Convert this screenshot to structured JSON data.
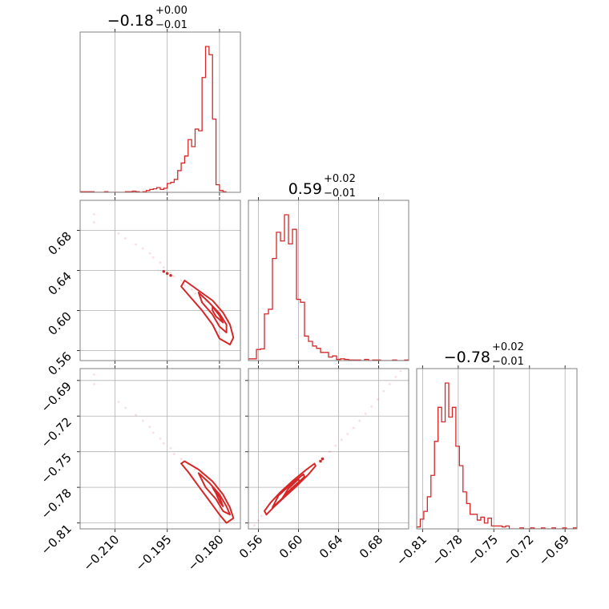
{
  "colors": {
    "series": "#d62728",
    "grid": "#b0b0b0",
    "frame": "#808080"
  },
  "chart_data": {
    "type": "corner",
    "parameters": [
      {
        "title": {
          "value": "−0.18",
          "upper": "+0.00",
          "lower": "−0.01"
        },
        "range": [
          -0.22,
          -0.174
        ],
        "ticks": [
          -0.21,
          -0.195,
          -0.18
        ],
        "tick_labels": [
          "−0.210",
          "−0.195",
          "−0.180"
        ],
        "histogram": {
          "bin_edges_start": -0.22,
          "bin_width": 0.001,
          "counts": [
            1,
            1,
            1,
            1,
            0,
            0,
            0,
            1,
            0,
            0,
            0,
            0,
            0,
            1,
            1,
            2,
            1,
            0,
            1,
            3,
            5,
            6,
            8,
            5,
            7,
            15,
            17,
            22,
            37,
            50,
            62,
            90,
            78,
            108,
            105,
            196,
            249,
            235,
            125,
            13,
            3,
            1
          ]
        }
      },
      {
        "title": {
          "value": "0.59",
          "upper": "+0.02",
          "lower": "−0.01"
        },
        "range": [
          0.55,
          0.71
        ],
        "ticks": [
          0.56,
          0.6,
          0.64,
          0.68
        ],
        "tick_labels": [
          "0.56",
          "0.60",
          "0.64",
          "0.68"
        ],
        "histogram": {
          "bin_edges_start": 0.55,
          "bin_width": 0.004,
          "counts": [
            3,
            3,
            19,
            20,
            80,
            88,
            175,
            220,
            205,
            250,
            200,
            225,
            105,
            100,
            42,
            33,
            25,
            21,
            14,
            14,
            6,
            8,
            2,
            3,
            2,
            1,
            1,
            1,
            0,
            2,
            0,
            1,
            1,
            0,
            0,
            0,
            1,
            0,
            0,
            1
          ]
        }
      },
      {
        "title": {
          "value": "−0.78",
          "upper": "+0.02",
          "lower": "−0.01"
        },
        "range": [
          -0.815,
          -0.68
        ],
        "ticks": [
          -0.81,
          -0.78,
          -0.75,
          -0.72,
          -0.69
        ],
        "tick_labels": [
          "−0.81",
          "−0.78",
          "−0.75",
          "−0.72",
          "−0.69"
        ],
        "histogram": {
          "bin_edges_start": -0.815,
          "bin_width": 0.003,
          "counts": [
            2,
            10,
            18,
            33,
            55,
            90,
            125,
            110,
            150,
            115,
            125,
            85,
            65,
            38,
            26,
            15,
            15,
            9,
            12,
            6,
            11,
            3,
            3,
            3,
            2,
            3,
            0,
            0,
            0,
            1,
            0,
            0,
            1,
            0,
            0,
            1,
            0,
            0,
            1,
            0,
            0,
            1,
            0,
            0,
            1
          ]
        }
      }
    ],
    "pairs": [
      {
        "x_param": 0,
        "y_param": 1,
        "scatter": [
          [
            -0.216,
            0.696
          ],
          [
            -0.216,
            0.688
          ],
          [
            -0.209,
            0.677
          ],
          [
            -0.207,
            0.672
          ],
          [
            -0.204,
            0.666
          ],
          [
            -0.202,
            0.662
          ],
          [
            -0.2,
            0.657
          ],
          [
            -0.199,
            0.653
          ],
          [
            -0.197,
            0.648
          ],
          [
            -0.196,
            0.643
          ],
          [
            -0.194,
            0.638
          ],
          [
            -0.193,
            0.634
          ],
          [
            -0.191,
            0.63
          ],
          [
            -0.19,
            0.625
          ],
          [
            -0.188,
            0.621
          ],
          [
            -0.187,
            0.617
          ],
          [
            -0.185,
            0.613
          ],
          [
            -0.184,
            0.609
          ]
        ],
        "dense_points": [
          [
            -0.196,
            0.639
          ],
          [
            -0.195,
            0.637
          ],
          [
            -0.194,
            0.635
          ]
        ],
        "contours": [
          [
            [
              -0.19,
              0.63
            ],
            [
              -0.186,
              0.62
            ],
            [
              -0.182,
              0.61
            ],
            [
              -0.179,
              0.598
            ],
            [
              -0.177,
              0.586
            ],
            [
              -0.176,
              0.573
            ],
            [
              -0.177,
              0.566
            ],
            [
              -0.18,
              0.572
            ],
            [
              -0.182,
              0.586
            ],
            [
              -0.185,
              0.6
            ],
            [
              -0.188,
              0.612
            ],
            [
              -0.191,
              0.624
            ]
          ],
          [
            [
              -0.186,
              0.618
            ],
            [
              -0.183,
              0.608
            ],
            [
              -0.18,
              0.597
            ],
            [
              -0.178,
              0.586
            ],
            [
              -0.178,
              0.578
            ],
            [
              -0.18,
              0.584
            ],
            [
              -0.182,
              0.596
            ],
            [
              -0.185,
              0.608
            ]
          ],
          [
            [
              -0.182,
              0.604
            ],
            [
              -0.18,
              0.595
            ],
            [
              -0.179,
              0.588
            ],
            [
              -0.181,
              0.594
            ],
            [
              -0.182,
              0.6
            ]
          ]
        ]
      },
      {
        "x_param": 0,
        "y_param": 2,
        "scatter": [
          [
            -0.216,
            -0.685
          ],
          [
            -0.216,
            -0.693
          ],
          [
            -0.209,
            -0.708
          ],
          [
            -0.207,
            -0.713
          ],
          [
            -0.204,
            -0.719
          ],
          [
            -0.202,
            -0.724
          ],
          [
            -0.2,
            -0.729
          ],
          [
            -0.199,
            -0.734
          ],
          [
            -0.197,
            -0.739
          ],
          [
            -0.196,
            -0.743
          ],
          [
            -0.194,
            -0.747
          ],
          [
            -0.193,
            -0.752
          ],
          [
            -0.191,
            -0.756
          ],
          [
            -0.189,
            -0.76
          ],
          [
            -0.187,
            -0.765
          ],
          [
            -0.185,
            -0.769
          ]
        ],
        "dense_points": [],
        "contours": [
          [
            [
              -0.19,
              -0.758
            ],
            [
              -0.186,
              -0.765
            ],
            [
              -0.182,
              -0.775
            ],
            [
              -0.179,
              -0.786
            ],
            [
              -0.177,
              -0.797
            ],
            [
              -0.176,
              -0.806
            ],
            [
              -0.178,
              -0.81
            ],
            [
              -0.18,
              -0.803
            ],
            [
              -0.183,
              -0.791
            ],
            [
              -0.186,
              -0.779
            ],
            [
              -0.189,
              -0.767
            ],
            [
              -0.191,
              -0.76
            ]
          ],
          [
            [
              -0.186,
              -0.768
            ],
            [
              -0.183,
              -0.776
            ],
            [
              -0.18,
              -0.786
            ],
            [
              -0.178,
              -0.796
            ],
            [
              -0.177,
              -0.803
            ],
            [
              -0.179,
              -0.8
            ],
            [
              -0.181,
              -0.79
            ],
            [
              -0.184,
              -0.78
            ]
          ],
          [
            [
              -0.182,
              -0.78
            ],
            [
              -0.18,
              -0.788
            ],
            [
              -0.179,
              -0.796
            ],
            [
              -0.18,
              -0.792
            ],
            [
              -0.181,
              -0.785
            ]
          ]
        ]
      },
      {
        "x_param": 1,
        "y_param": 2,
        "scatter": [
          [
            0.556,
            -0.812
          ],
          [
            0.56,
            -0.808
          ],
          [
            0.563,
            -0.804
          ],
          [
            0.631,
            -0.75
          ],
          [
            0.637,
            -0.745
          ],
          [
            0.643,
            -0.74
          ],
          [
            0.649,
            -0.735
          ],
          [
            0.655,
            -0.73
          ],
          [
            0.661,
            -0.724
          ],
          [
            0.667,
            -0.718
          ],
          [
            0.673,
            -0.712
          ],
          [
            0.679,
            -0.706
          ],
          [
            0.685,
            -0.699
          ],
          [
            0.691,
            -0.693
          ],
          [
            0.697,
            -0.687
          ],
          [
            0.702,
            -0.682
          ]
        ],
        "dense_points": [
          [
            0.622,
            -0.758
          ],
          [
            0.624,
            -0.756
          ]
        ],
        "contours": [
          [
            [
              0.568,
              -0.803
            ],
            [
              0.575,
              -0.797
            ],
            [
              0.585,
              -0.789
            ],
            [
              0.598,
              -0.779
            ],
            [
              0.61,
              -0.769
            ],
            [
              0.617,
              -0.762
            ],
            [
              0.616,
              -0.76
            ],
            [
              0.608,
              -0.765
            ],
            [
              0.595,
              -0.774
            ],
            [
              0.582,
              -0.784
            ],
            [
              0.572,
              -0.793
            ],
            [
              0.566,
              -0.8
            ]
          ],
          [
            [
              0.574,
              -0.797
            ],
            [
              0.583,
              -0.79
            ],
            [
              0.595,
              -0.78
            ],
            [
              0.606,
              -0.771
            ],
            [
              0.605,
              -0.769
            ],
            [
              0.593,
              -0.777
            ],
            [
              0.58,
              -0.787
            ]
          ],
          [
            [
              0.584,
              -0.789
            ],
            [
              0.593,
              -0.781
            ],
            [
              0.601,
              -0.775
            ],
            [
              0.6,
              -0.773
            ],
            [
              0.59,
              -0.781
            ]
          ]
        ]
      }
    ]
  }
}
